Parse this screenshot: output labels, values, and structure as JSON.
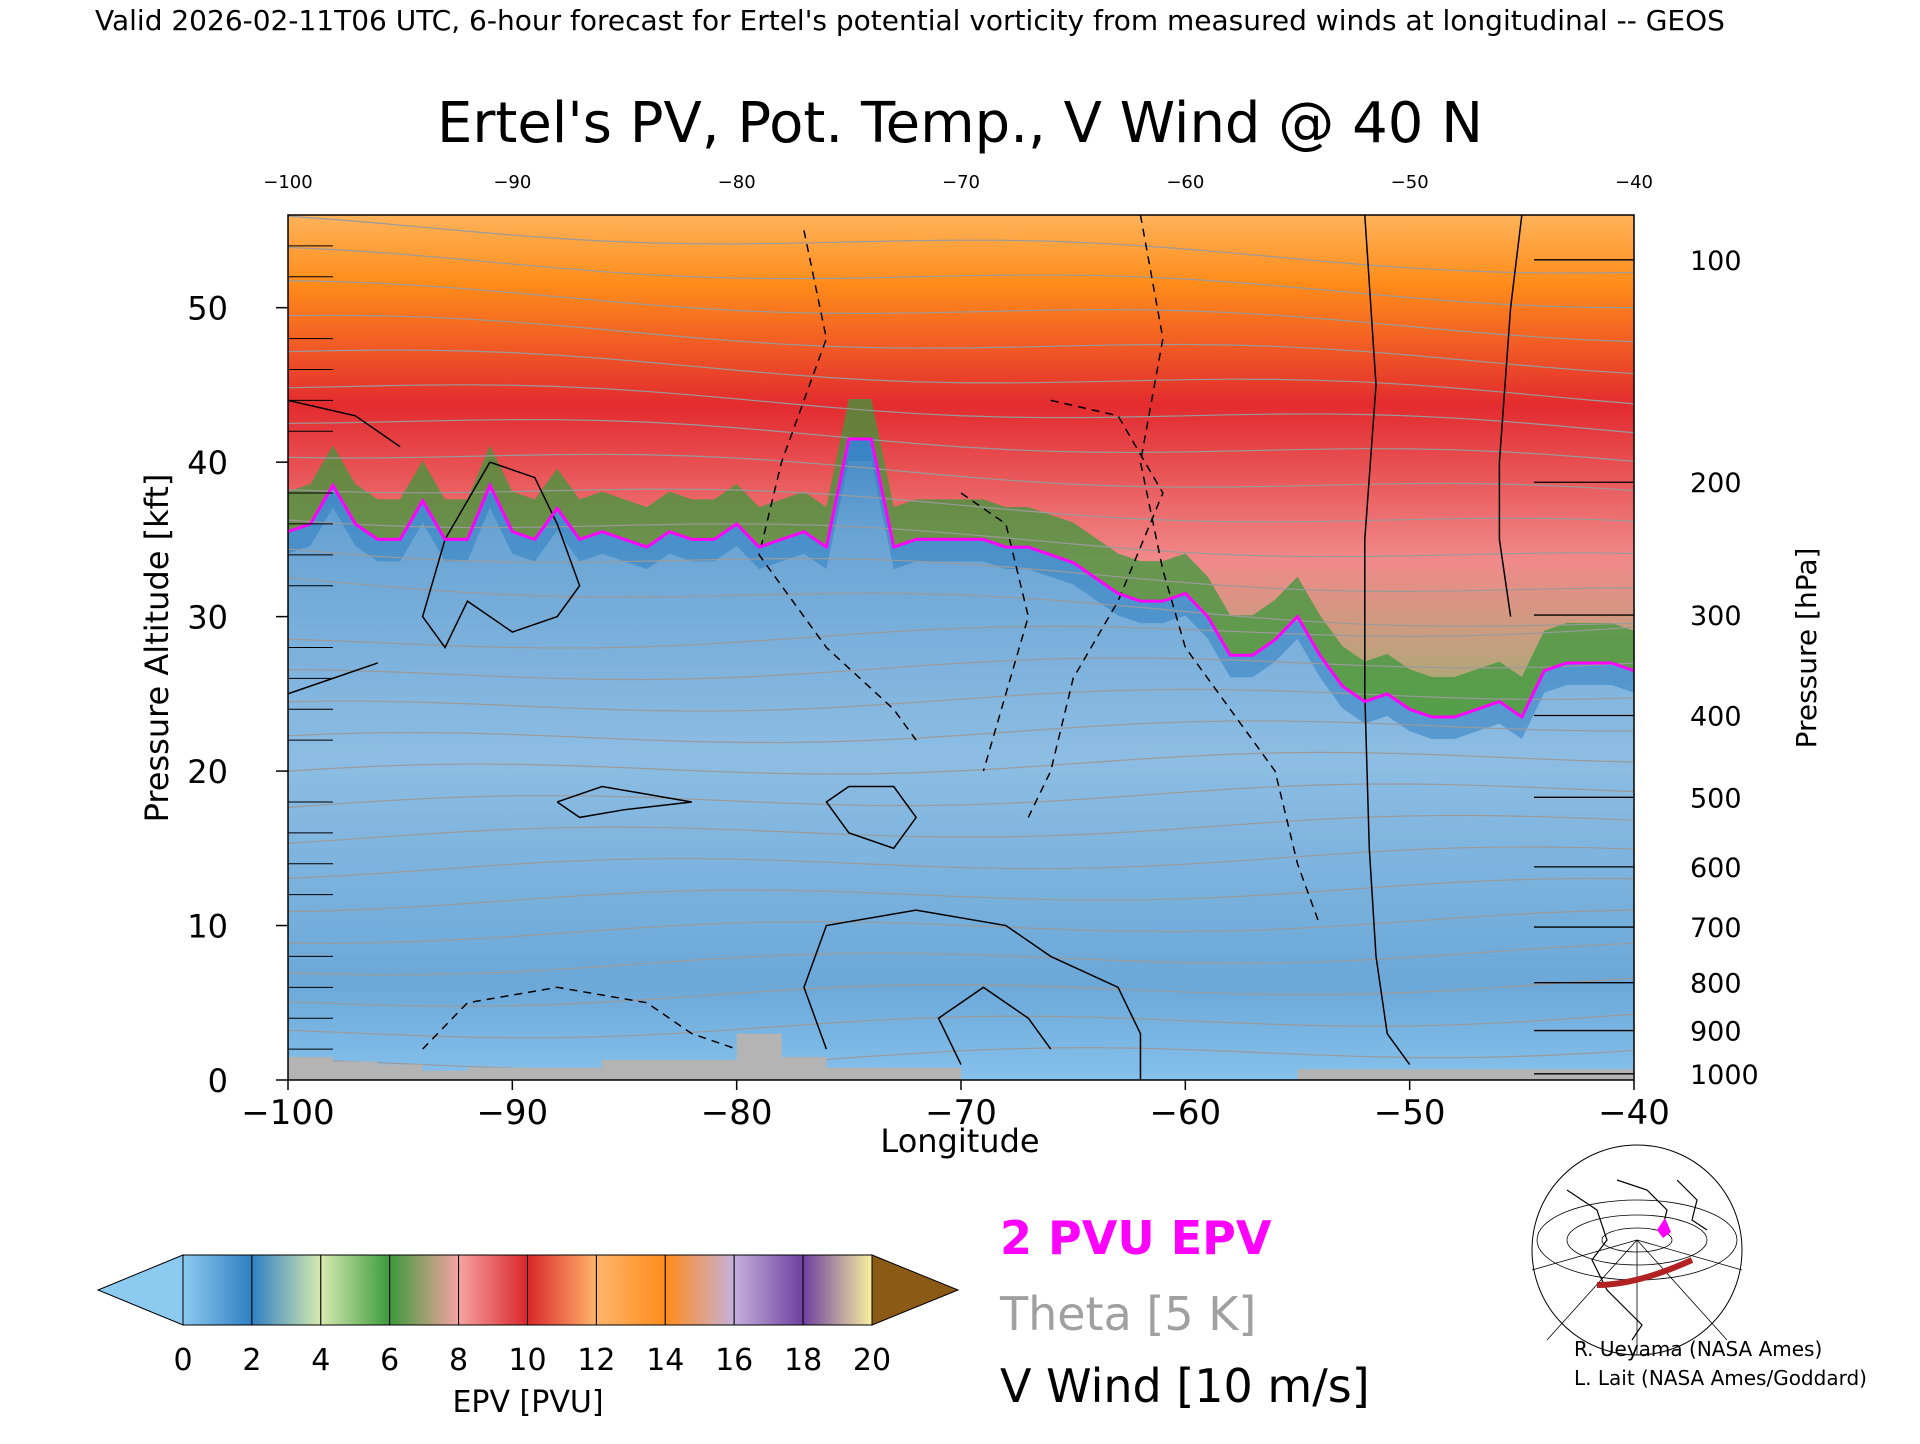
{
  "header": {
    "valid_line": "Valid 2026-02-11T06 UTC, 6-hour forecast for Ertel's potential vorticity from measured winds at longitudinal -- GEOS"
  },
  "chart_data": {
    "type": "heatmap",
    "title": "Ertel's PV, Pot. Temp., V Wind @ 40 N",
    "xlabel": "Longitude",
    "ylabel_left": "Pressure Altitude [kft]",
    "ylabel_right": "Pressure [hPa]",
    "xlim": [
      -100,
      -40
    ],
    "ylim": [
      0,
      56
    ],
    "x_ticks_bottom": [
      "−100",
      "−90",
      "−80",
      "−70",
      "−60",
      "−50",
      "−40"
    ],
    "x_ticks_top": [
      "−100",
      "−90",
      "−80",
      "−70",
      "−60",
      "−50",
      "−40"
    ],
    "y_ticks_left": [
      {
        "value": 0,
        "label": "0"
      },
      {
        "value": 10,
        "label": "10"
      },
      {
        "value": 20,
        "label": "20"
      },
      {
        "value": 30,
        "label": "30"
      },
      {
        "value": 40,
        "label": "40"
      },
      {
        "value": 50,
        "label": "50"
      }
    ],
    "y_ticks_right": [
      {
        "kft": 0.4,
        "label": "1000"
      },
      {
        "kft": 3.2,
        "label": "900"
      },
      {
        "kft": 6.3,
        "label": "800"
      },
      {
        "kft": 9.9,
        "label": "700"
      },
      {
        "kft": 13.8,
        "label": "600"
      },
      {
        "kft": 18.3,
        "label": "500"
      },
      {
        "kft": 23.6,
        "label": "400"
      },
      {
        "kft": 30.1,
        "label": "300"
      },
      {
        "kft": 38.7,
        "label": "200"
      },
      {
        "kft": 53.1,
        "label": "100"
      }
    ],
    "tropopause_2pvu": [
      [
        -100,
        35.5
      ],
      [
        -99,
        36
      ],
      [
        -98,
        38.5
      ],
      [
        -97,
        36
      ],
      [
        -96,
        35
      ],
      [
        -95,
        35
      ],
      [
        -94,
        37.5
      ],
      [
        -93,
        35
      ],
      [
        -92,
        35
      ],
      [
        -91,
        38.5
      ],
      [
        -90,
        35.5
      ],
      [
        -89,
        35
      ],
      [
        -88,
        37
      ],
      [
        -87,
        35
      ],
      [
        -86,
        35.5
      ],
      [
        -85,
        35
      ],
      [
        -84,
        34.5
      ],
      [
        -83,
        35.5
      ],
      [
        -82,
        35
      ],
      [
        -81,
        35
      ],
      [
        -80,
        36
      ],
      [
        -79,
        34.5
      ],
      [
        -78,
        35
      ],
      [
        -77,
        35.5
      ],
      [
        -76,
        34.5
      ],
      [
        -75,
        41.5
      ],
      [
        -74,
        41.5
      ],
      [
        -73,
        34.5
      ],
      [
        -72,
        35
      ],
      [
        -71,
        35
      ],
      [
        -70,
        35
      ],
      [
        -69,
        35
      ],
      [
        -68,
        34.5
      ],
      [
        -67,
        34.5
      ],
      [
        -66,
        34
      ],
      [
        -65,
        33.5
      ],
      [
        -64,
        32.5
      ],
      [
        -63,
        31.5
      ],
      [
        -62,
        31
      ],
      [
        -61,
        31
      ],
      [
        -60,
        31.5
      ],
      [
        -59,
        30
      ],
      [
        -58,
        27.5
      ],
      [
        -57,
        27.5
      ],
      [
        -56,
        28.5
      ],
      [
        -55,
        30
      ],
      [
        -54,
        27.5
      ],
      [
        -53,
        25.5
      ],
      [
        -52,
        24.5
      ],
      [
        -51,
        25
      ],
      [
        -50,
        24
      ],
      [
        -49,
        23.5
      ],
      [
        -48,
        23.5
      ],
      [
        -47,
        24
      ],
      [
        -46,
        24.5
      ],
      [
        -45,
        23.5
      ],
      [
        -44,
        26.5
      ],
      [
        -43,
        27
      ],
      [
        -42,
        27
      ],
      [
        -41,
        27
      ],
      [
        -40,
        26.5
      ]
    ],
    "terrain_kft": [
      [
        -100,
        1.5
      ],
      [
        -98,
        1.5
      ],
      [
        -98,
        1.2
      ],
      [
        -96,
        1.2
      ],
      [
        -96,
        1.0
      ],
      [
        -94,
        1.0
      ],
      [
        -94,
        0.6
      ],
      [
        -92,
        0.6
      ],
      [
        -92,
        0.8
      ],
      [
        -86,
        0.8
      ],
      [
        -86,
        1.3
      ],
      [
        -80,
        1.3
      ],
      [
        -80,
        3.0
      ],
      [
        -78,
        3.0
      ],
      [
        -78,
        1.5
      ],
      [
        -76,
        1.5
      ],
      [
        -76,
        0.8
      ],
      [
        -70,
        0.8
      ],
      [
        -70,
        0
      ],
      [
        -55,
        0
      ],
      [
        -55,
        0.7
      ],
      [
        -40,
        0.7
      ]
    ],
    "v_wind_contour_interval": "10 m/s",
    "theta_contour_interval": "5 K",
    "colorbar": {
      "label": "EPV [PVU]",
      "ticks": [
        "0",
        "2",
        "4",
        "6",
        "8",
        "10",
        "12",
        "14",
        "16",
        "18",
        "20"
      ],
      "colors": [
        "#8ccaf0",
        "#2f7fc1",
        "#d6ebb0",
        "#3c9a3c",
        "#f6a3a3",
        "#d9262b",
        "#ffb56b",
        "#ff8c1a",
        "#c5b1dc",
        "#6e3fa0",
        "#f9f0a0",
        "#8b5a14"
      ]
    }
  },
  "legend": {
    "pvu_label": "2 PVU EPV",
    "pvu_color": "#ff00ff",
    "theta_label": "Theta [5 K]",
    "theta_color": "#a0a0a0",
    "wind_label": "V Wind [10 m/s]",
    "wind_color": "#000000"
  },
  "inset_map": {
    "icon": "globe-map-icon",
    "track_color": "#b22222",
    "marker_color": "#ff00ff"
  },
  "credits": {
    "line1": "R. Ueyama (NASA Ames)",
    "line2": "L. Lait (NASA Ames/Goddard)"
  }
}
